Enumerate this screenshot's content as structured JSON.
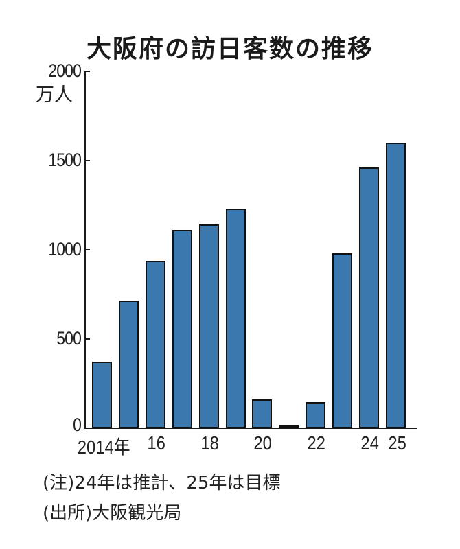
{
  "chart_data": {
    "type": "bar",
    "title": "大阪府の訪日客数の推移",
    "xlabel": "",
    "ylabel": "万人",
    "ylim": [
      0,
      2000
    ],
    "yticks": [
      0,
      500,
      1000,
      1500,
      2000
    ],
    "ytick_labels": [
      "0",
      "500",
      "1000",
      "1500",
      "2000"
    ],
    "categories": [
      "2014",
      "2015",
      "2016",
      "2017",
      "2018",
      "2019",
      "2020",
      "2021",
      "2022",
      "2023",
      "2024",
      "2025"
    ],
    "xtick_labels": [
      {
        "index": 0,
        "label": "2014年"
      },
      {
        "index": 2,
        "label": "16"
      },
      {
        "index": 4,
        "label": "18"
      },
      {
        "index": 6,
        "label": "20"
      },
      {
        "index": 8,
        "label": "22"
      },
      {
        "index": 10,
        "label": "24"
      },
      {
        "index": 11,
        "label": "25"
      }
    ],
    "values": [
      375,
      716,
      940,
      1110,
      1142,
      1231,
      160,
      10,
      148,
      980,
      1460,
      1600
    ],
    "bar_color": "#3a78ad",
    "grid": false,
    "legend": null,
    "notes": [
      "(注)24年は推計、25年は目標",
      "(出所)大阪観光局"
    ]
  },
  "title": "大阪府の訪日客数の推移",
  "unit_label": "万人",
  "yaxis": {
    "labels": [
      "2000",
      "1500",
      "1000",
      "500",
      "0"
    ]
  },
  "xaxis": {
    "labels": [
      "2014年",
      "16",
      "18",
      "20",
      "22",
      "24",
      "25"
    ]
  },
  "notes": {
    "note": "(注)24年は推計、25年は目標",
    "source": "(出所)大阪観光局"
  }
}
